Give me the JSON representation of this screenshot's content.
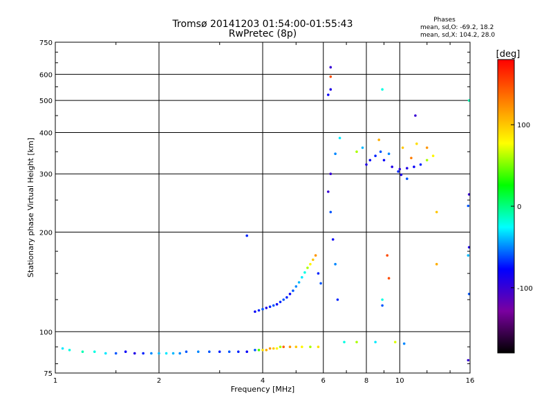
{
  "chart_data": {
    "type": "scatter",
    "title": "Tromsø 20141203 01:54:00-01:55:43",
    "subtitle": "RwPretec (8p)",
    "xlabel": "Frequency [MHz]",
    "ylabel": "Stationary phase Virtual Height [km]",
    "x_scale": "log",
    "y_scale": "log",
    "xlim": [
      1,
      16
    ],
    "ylim": [
      75,
      750
    ],
    "x_ticks": [
      1,
      2,
      4,
      6,
      8,
      10,
      16
    ],
    "y_ticks": [
      75,
      100,
      200,
      300,
      400,
      500,
      600,
      750
    ],
    "x_tick_labels": [
      "1",
      "2",
      "4",
      "6",
      "8",
      "10",
      "16"
    ],
    "y_tick_labels": [
      "75",
      "100",
      "200",
      "300",
      "400",
      "500",
      "600",
      "750"
    ],
    "grid": true,
    "stats": {
      "title": "Phases",
      "line1": "mean, sd,O: -69.2, 18.2",
      "line2": "mean, sd,X: 104.2, 28.0"
    },
    "colorbar": {
      "label": "[deg]",
      "min": -180,
      "max": 180,
      "ticks": [
        100,
        0,
        -100
      ],
      "tick_labels": [
        "100",
        "0",
        "-100"
      ],
      "colors": [
        "#000000",
        "#7a00a0",
        "#0000ff",
        "#00ffff",
        "#00ff00",
        "#ffff00",
        "#ff8000",
        "#ff0000"
      ]
    },
    "series": [
      {
        "values": [
          [
            1.05,
            89,
            -30
          ],
          [
            1.1,
            88,
            -20
          ],
          [
            1.2,
            87,
            -10
          ],
          [
            1.3,
            87,
            -20
          ],
          [
            1.4,
            86,
            -30
          ],
          [
            1.5,
            86,
            -60
          ],
          [
            1.6,
            87,
            -80
          ],
          [
            1.7,
            86,
            -90
          ],
          [
            1.8,
            86,
            -70
          ],
          [
            1.9,
            86,
            -50
          ],
          [
            2.0,
            86,
            -40
          ],
          [
            2.1,
            86,
            -30
          ],
          [
            2.2,
            86,
            -40
          ],
          [
            2.3,
            86,
            -50
          ],
          [
            2.4,
            87,
            -60
          ],
          [
            2.6,
            87,
            -50
          ],
          [
            2.8,
            87,
            -60
          ],
          [
            3.0,
            87,
            -70
          ],
          [
            3.2,
            87,
            -60
          ],
          [
            3.4,
            87,
            -70
          ],
          [
            3.6,
            87,
            -80
          ],
          [
            3.8,
            88,
            -60
          ],
          [
            3.9,
            88,
            40
          ],
          [
            4.0,
            88,
            90
          ],
          [
            4.1,
            88,
            110
          ],
          [
            4.2,
            89,
            120
          ],
          [
            4.3,
            89,
            100
          ],
          [
            4.4,
            89,
            80
          ],
          [
            4.5,
            90,
            60
          ],
          [
            4.6,
            90,
            140
          ],
          [
            4.8,
            90,
            120
          ],
          [
            5.0,
            90,
            100
          ],
          [
            5.2,
            90,
            80
          ],
          [
            5.5,
            90,
            60
          ],
          [
            5.8,
            90,
            90
          ]
        ]
      },
      {
        "values": [
          [
            3.8,
            115,
            -80
          ],
          [
            3.9,
            116,
            -70
          ],
          [
            4.0,
            117,
            -60
          ],
          [
            4.1,
            118,
            -90
          ],
          [
            4.2,
            119,
            -70
          ],
          [
            4.3,
            120,
            -60
          ],
          [
            4.4,
            121,
            -80
          ],
          [
            4.5,
            123,
            -70
          ],
          [
            4.6,
            125,
            -60
          ],
          [
            4.7,
            127,
            -70
          ],
          [
            4.8,
            130,
            -80
          ],
          [
            4.9,
            133,
            -60
          ],
          [
            5.0,
            137,
            -50
          ],
          [
            5.1,
            141,
            -40
          ],
          [
            5.2,
            146,
            -30
          ],
          [
            5.3,
            151,
            -20
          ],
          [
            5.4,
            156,
            60
          ],
          [
            5.5,
            160,
            80
          ],
          [
            5.6,
            165,
            100
          ],
          [
            5.7,
            170,
            120
          ],
          [
            5.8,
            150,
            -70
          ],
          [
            5.9,
            140,
            -60
          ]
        ]
      },
      {
        "values": [
          [
            8.0,
            320,
            -90
          ],
          [
            8.2,
            330,
            -80
          ],
          [
            8.5,
            340,
            -70
          ],
          [
            8.8,
            350,
            -60
          ],
          [
            9.0,
            330,
            -80
          ],
          [
            9.5,
            315,
            -90
          ],
          [
            10.0,
            310,
            -95
          ],
          [
            10.5,
            312,
            -90
          ],
          [
            11.0,
            315,
            -80
          ],
          [
            11.5,
            320,
            -70
          ],
          [
            12.0,
            330,
            60
          ],
          [
            12.5,
            340,
            80
          ],
          [
            10.2,
            360,
            100
          ],
          [
            11.2,
            370,
            90
          ],
          [
            8.7,
            380,
            110
          ],
          [
            7.5,
            350,
            60
          ],
          [
            7.8,
            360,
            -40
          ],
          [
            9.3,
            345,
            -50
          ],
          [
            10.8,
            335,
            130
          ],
          [
            12.0,
            360,
            120
          ]
        ]
      },
      {
        "values": [
          [
            6.3,
            630,
            -100
          ],
          [
            6.3,
            590,
            150
          ],
          [
            6.3,
            540,
            -90
          ],
          [
            6.2,
            520,
            -80
          ],
          [
            6.3,
            300,
            -100
          ],
          [
            6.2,
            265,
            -100
          ],
          [
            6.3,
            230,
            -60
          ],
          [
            6.4,
            190,
            -80
          ],
          [
            6.5,
            160,
            -50
          ],
          [
            6.6,
            125,
            -70
          ],
          [
            8.9,
            540,
            -20
          ],
          [
            11.1,
            450,
            -100
          ],
          [
            15.9,
            500,
            -10
          ],
          [
            15.9,
            260,
            -100
          ],
          [
            15.8,
            240,
            -60
          ],
          [
            15.9,
            180,
            -90
          ],
          [
            15.8,
            170,
            -40
          ],
          [
            15.9,
            130,
            -60
          ],
          [
            15.8,
            82,
            -100
          ],
          [
            12.8,
            160,
            110
          ],
          [
            12.8,
            230,
            100
          ],
          [
            9.2,
            170,
            150
          ],
          [
            9.3,
            145,
            150
          ],
          [
            8.9,
            125,
            -20
          ],
          [
            8.9,
            120,
            -60
          ],
          [
            9.7,
            93,
            70
          ],
          [
            10.3,
            92,
            -50
          ],
          [
            8.5,
            93,
            -30
          ],
          [
            7.5,
            93,
            60
          ],
          [
            6.9,
            93,
            -20
          ],
          [
            3.6,
            195,
            -70
          ],
          [
            6.7,
            385,
            -30
          ],
          [
            6.5,
            345,
            -50
          ],
          [
            10.5,
            290,
            -60
          ],
          [
            9.9,
            305,
            -70
          ],
          [
            10.1,
            298,
            -90
          ]
        ]
      }
    ]
  }
}
